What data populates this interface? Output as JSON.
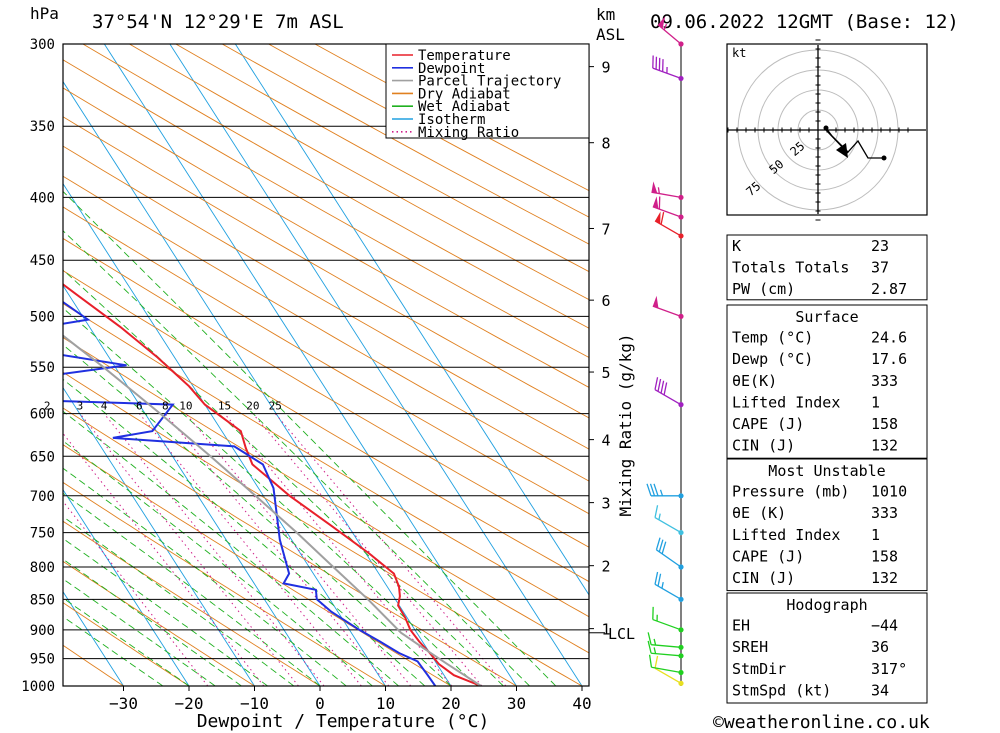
{
  "header": {
    "hpa_label": "hPa",
    "location": "37°54'N  12°29'E  7m  ASL",
    "km_label": "km",
    "asl_label": "ASL",
    "datetime": "09.06.2022  12GMT  (Base: 12)"
  },
  "footer": {
    "copyright": "©weatheronline.co.uk"
  },
  "chart_data": {
    "type": "line",
    "xlabel": "Dewpoint / Temperature (°C)",
    "ylabel_right": "Mixing Ratio (g/kg)",
    "x_ticks": [
      -30,
      -20,
      -10,
      0,
      10,
      20,
      30,
      40
    ],
    "pressure_levels": [
      300,
      350,
      400,
      450,
      500,
      550,
      600,
      650,
      700,
      750,
      800,
      850,
      900,
      950,
      1000
    ],
    "km_ticks": [
      {
        "label": "9",
        "p": 313
      },
      {
        "label": "8",
        "p": 361
      },
      {
        "label": "7",
        "p": 424
      },
      {
        "label": "6",
        "p": 485
      },
      {
        "label": "5",
        "p": 555
      },
      {
        "label": "4",
        "p": 630
      },
      {
        "label": "3",
        "p": 709
      },
      {
        "label": "2",
        "p": 798
      },
      {
        "label": "1",
        "p": 898
      }
    ],
    "lcl": {
      "label": "LCL",
      "p": 905
    },
    "mixing_ratio_labels": [
      "1",
      "2",
      "3",
      "4",
      "6",
      "8",
      "10",
      "15",
      "20",
      "25"
    ],
    "legend": [
      "Temperature",
      "Dewpoint",
      "Parcel Trajectory",
      "Dry Adiabat",
      "Wet Adiabat",
      "Isotherm",
      "Mixing Ratio"
    ],
    "legend_position": "top-right",
    "colors": {
      "temperature": "#e8202a",
      "dewpoint": "#2030e0",
      "parcel": "#a0a0a0",
      "dry_adiabat": "#e08020",
      "wet_adiabat": "#20b020",
      "isotherm": "#20a0e0",
      "mixing_ratio": "#d0208a"
    },
    "series": [
      {
        "name": "Temperature",
        "points": [
          [
            1000,
            24.6
          ],
          [
            980,
            21.5
          ],
          [
            960,
            20.3
          ],
          [
            940,
            20.0
          ],
          [
            920,
            19.5
          ],
          [
            900,
            19.3
          ],
          [
            880,
            19.7
          ],
          [
            860,
            19.8
          ],
          [
            845,
            21.0
          ],
          [
            830,
            21.8
          ],
          [
            810,
            22.3
          ],
          [
            780,
            20.5
          ],
          [
            740,
            17.4
          ],
          [
            700,
            14.0
          ],
          [
            660,
            11.4
          ],
          [
            640,
            12.0
          ],
          [
            620,
            12.9
          ],
          [
            590,
            10.0
          ],
          [
            570,
            9.4
          ],
          [
            540,
            7.4
          ],
          [
            510,
            4.7
          ],
          [
            480,
            1.2
          ],
          [
            450,
            -2.4
          ],
          [
            420,
            -6.1
          ],
          [
            400,
            -7.8
          ],
          [
            380,
            -8.5
          ],
          [
            350,
            -12.2
          ],
          [
            320,
            -15.6
          ],
          [
            300,
            -17.8
          ]
        ]
      },
      {
        "name": "Dewpoint",
        "points": [
          [
            1000,
            17.6
          ],
          [
            980,
            17.5
          ],
          [
            955,
            17.3
          ],
          [
            940,
            15.3
          ],
          [
            920,
            13.5
          ],
          [
            900,
            11.5
          ],
          [
            870,
            9.0
          ],
          [
            850,
            8.0
          ],
          [
            835,
            8.8
          ],
          [
            825,
            4.5
          ],
          [
            810,
            6.3
          ],
          [
            760,
            8.2
          ],
          [
            720,
            10.5
          ],
          [
            690,
            12.3
          ],
          [
            660,
            13.0
          ],
          [
            638,
            10.4
          ],
          [
            628,
            -7.3
          ],
          [
            620,
            -0.6
          ],
          [
            590,
            5.1
          ],
          [
            585,
            -16.0
          ],
          [
            568,
            -21.7
          ],
          [
            548,
            1.9
          ],
          [
            535,
            -9.0
          ],
          [
            520,
            -17.6
          ],
          [
            503,
            0.5
          ],
          [
            480,
            -2.5
          ],
          [
            455,
            -5.1
          ],
          [
            430,
            -3.5
          ],
          [
            410,
            -0.1
          ],
          [
            400,
            2.0
          ],
          [
            380,
            2.0
          ],
          [
            360,
            1.2
          ],
          [
            340,
            -0.5
          ],
          [
            320,
            -2.5
          ],
          [
            300,
            -6.2
          ]
        ]
      },
      {
        "name": "Parcel Trajectory",
        "points": [
          [
            1000,
            24.6
          ],
          [
            960,
            21.6
          ],
          [
            930,
            19.4
          ],
          [
            905,
            17.6
          ],
          [
            850,
            15.8
          ],
          [
            800,
            13.7
          ],
          [
            750,
            11.5
          ],
          [
            700,
            8.8
          ],
          [
            650,
            5.8
          ],
          [
            600,
            2.3
          ],
          [
            550,
            -1.8
          ],
          [
            500,
            -6.8
          ],
          [
            450,
            -12.5
          ],
          [
            400,
            -19.5
          ],
          [
            350,
            -27.5
          ],
          [
            300,
            -36.5
          ]
        ]
      }
    ],
    "hodograph": {
      "unit_label": "kt",
      "ring_labels": [
        "25",
        "50",
        "75"
      ]
    },
    "wind_barbs": [
      {
        "p": 995,
        "dir": 300,
        "spd": 10,
        "color": "#e8e020"
      },
      {
        "p": 975,
        "dir": 280,
        "spd": 10,
        "color": "#20d020"
      },
      {
        "p": 945,
        "dir": 275,
        "spd": 15,
        "color": "#20d020"
      },
      {
        "p": 930,
        "dir": 275,
        "spd": 15,
        "color": "#20d020"
      },
      {
        "p": 900,
        "dir": 290,
        "spd": 15,
        "color": "#20d020"
      },
      {
        "p": 850,
        "dir": 300,
        "spd": 25,
        "color": "#20a0e0"
      },
      {
        "p": 800,
        "dir": 305,
        "spd": 30,
        "color": "#20a0e0"
      },
      {
        "p": 750,
        "dir": 300,
        "spd": 15,
        "color": "#40c0e0"
      },
      {
        "p": 700,
        "dir": 270,
        "spd": 35,
        "color": "#20a0e0"
      },
      {
        "p": 590,
        "dir": 300,
        "spd": 40,
        "color": "#a020c0"
      },
      {
        "p": 500,
        "dir": 290,
        "spd": 50,
        "color": "#d0208a"
      },
      {
        "p": 430,
        "dir": 300,
        "spd": 60,
        "color": "#e8202a"
      },
      {
        "p": 415,
        "dir": 290,
        "spd": 60,
        "color": "#d0208a"
      },
      {
        "p": 400,
        "dir": 280,
        "spd": 55,
        "color": "#d0208a"
      },
      {
        "p": 320,
        "dir": 290,
        "spd": 45,
        "color": "#a020c0"
      },
      {
        "p": 300,
        "dir": 310,
        "spd": 55,
        "color": "#d0208a"
      }
    ]
  },
  "indices": [
    {
      "label": "K",
      "value": "23"
    },
    {
      "label": "Totals Totals",
      "value": "37"
    },
    {
      "label": "PW (cm)",
      "value": "2.87"
    }
  ],
  "surface": {
    "title": "Surface",
    "rows": [
      {
        "label": "Temp (°C)",
        "value": "24.6"
      },
      {
        "label": "Dewp (°C)",
        "value": "17.6"
      },
      {
        "label": "θE(K)",
        "value": "333"
      },
      {
        "label": "Lifted Index",
        "value": "1"
      },
      {
        "label": "CAPE (J)",
        "value": "158"
      },
      {
        "label": "CIN (J)",
        "value": "132"
      }
    ]
  },
  "most_unstable": {
    "title": "Most Unstable",
    "rows": [
      {
        "label": "Pressure (mb)",
        "value": "1010"
      },
      {
        "label": "θE (K)",
        "value": "333"
      },
      {
        "label": "Lifted Index",
        "value": "1"
      },
      {
        "label": "CAPE (J)",
        "value": "158"
      },
      {
        "label": "CIN (J)",
        "value": "132"
      }
    ]
  },
  "hodograph_table": {
    "title": "Hodograph",
    "rows": [
      {
        "label": "EH",
        "value": "-44"
      },
      {
        "label": "SREH",
        "value": "36"
      },
      {
        "label": "StmDir",
        "value": "317°"
      },
      {
        "label": "StmSpd (kt)",
        "value": "34"
      }
    ]
  }
}
